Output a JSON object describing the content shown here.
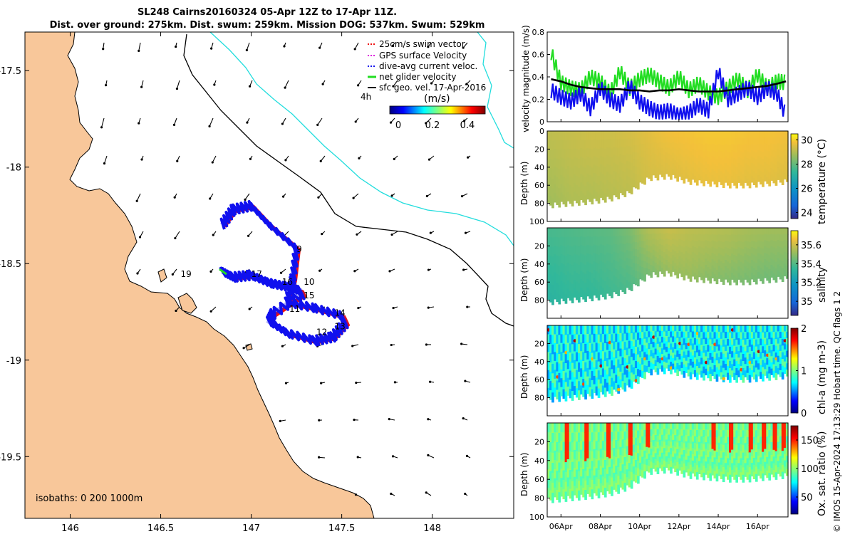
{
  "title": "SL248 Cairns20160324 05-Apr 12Z to 17-Apr 11Z.",
  "subtitle": "Dist. over ground: 275km. Dist. swum: 259km. Mission DOG: 537km. Swum: 529km",
  "credit": "© IMOS 15-Apr-2024 17:13:29 Hobart time. QC flags 1  2",
  "colors": {
    "land": "#f8c79a",
    "coast": "#000000",
    "isobath200": "#000000",
    "isobath1000": "#22dddd",
    "track": "#1010ee",
    "swim": "#ee1111",
    "net": "#22dd22"
  },
  "chart_data": [
    {
      "type": "line",
      "panel": "map",
      "title": "Glider track map",
      "xlabel": "",
      "ylabel": "",
      "xlim": [
        145.75,
        148.45
      ],
      "ylim": [
        -19.82,
        -17.3
      ],
      "x_ticks": [
        "146",
        "146.5",
        "147",
        "147.5",
        "148"
      ],
      "y_ticks": [
        "-17.5",
        "-18",
        "-18.5",
        "-19",
        "-19.5"
      ],
      "isobath_label": "isobaths: 0   200  1000m",
      "legend": [
        {
          "label": "25cm/s swim vector",
          "color": "#ee1111"
        },
        {
          "label": "GPS surface Velocity",
          "color": "#dd22dd"
        },
        {
          "label": "dive-avg current veloc.",
          "color": "#1010ee"
        },
        {
          "label": "net glider velocity",
          "color": "#22dd22"
        },
        {
          "label": "sfc geo. vel. 17-Apr-2016",
          "color": "#000000"
        }
      ],
      "legend_note": "4h",
      "colorbar_label": "(m/s)",
      "colorbar_ticks": [
        "0",
        "0.2",
        "0.4"
      ],
      "track_lon": [
        146.84,
        146.9,
        147.0,
        147.1,
        147.2,
        147.27,
        147.28,
        147.12,
        147.1,
        147.2,
        147.35,
        147.45,
        147.52,
        147.5,
        147.35,
        147.2,
        147.23,
        147.25,
        147.1,
        147.0,
        146.9,
        146.84
      ],
      "track_lat": [
        -18.54,
        -18.57,
        -18.56,
        -18.6,
        -18.62,
        -18.64,
        -18.66,
        -18.76,
        -18.8,
        -18.86,
        -18.9,
        -18.88,
        -18.81,
        -18.77,
        -18.73,
        -18.7,
        -18.58,
        -18.42,
        -18.3,
        -18.2,
        -18.22,
        -18.3
      ],
      "day_labels": [
        {
          "label": "9",
          "lon": 147.25,
          "lat": -18.44
        },
        {
          "label": "10",
          "lon": 147.29,
          "lat": -18.61
        },
        {
          "label": "11",
          "lon": 147.21,
          "lat": -18.75
        },
        {
          "label": "12",
          "lon": 147.36,
          "lat": -18.87
        },
        {
          "label": "13",
          "lon": 147.46,
          "lat": -18.84
        },
        {
          "label": "14",
          "lon": 147.46,
          "lat": -18.77
        },
        {
          "label": "15",
          "lon": 147.29,
          "lat": -18.68
        },
        {
          "label": "16",
          "lon": 147.17,
          "lat": -18.61
        },
        {
          "label": "17",
          "lon": 147.0,
          "lat": -18.57
        },
        {
          "label": "19",
          "lon": 146.61,
          "lat": -18.57
        }
      ]
    },
    {
      "type": "line",
      "panel": "velocity",
      "ylabel": "velocity magnitude (m/s)",
      "ylim": [
        0,
        0.8
      ],
      "y_ticks": [
        "0",
        "0.2",
        "0.4",
        "0.6",
        "0.8"
      ],
      "x_days": [
        5.5,
        6,
        6.5,
        7,
        7.5,
        8,
        8.5,
        9,
        9.5,
        10,
        10.5,
        11,
        11.5,
        12,
        12.5,
        13,
        13.5,
        14,
        14.5,
        15,
        15.5,
        16,
        16.5,
        17,
        17.45
      ],
      "series": [
        {
          "name": "net glider velocity",
          "color": "#22dd22",
          "values": [
            0.62,
            0.35,
            0.3,
            0.28,
            0.4,
            0.36,
            0.25,
            0.45,
            0.3,
            0.38,
            0.42,
            0.36,
            0.3,
            0.4,
            0.28,
            0.34,
            0.26,
            0.22,
            0.3,
            0.38,
            0.28,
            0.42,
            0.3,
            0.36,
            0.35
          ]
        },
        {
          "name": "dive-avg current veloc.",
          "color": "#1010ee",
          "values": [
            0.28,
            0.22,
            0.18,
            0.25,
            0.12,
            0.3,
            0.2,
            0.15,
            0.32,
            0.18,
            0.12,
            0.08,
            0.1,
            0.05,
            0.08,
            0.15,
            0.1,
            0.45,
            0.2,
            0.25,
            0.3,
            0.22,
            0.3,
            0.25,
            0.05
          ]
        },
        {
          "name": "sfc geo. vel.",
          "color": "#000000",
          "values": [
            0.38,
            0.36,
            0.33,
            0.31,
            0.3,
            0.29,
            0.29,
            0.29,
            0.28,
            0.28,
            0.27,
            0.28,
            0.28,
            0.29,
            0.28,
            0.27,
            0.27,
            0.27,
            0.28,
            0.29,
            0.3,
            0.31,
            0.32,
            0.34,
            0.36
          ]
        }
      ]
    },
    {
      "type": "heatmap",
      "panel": "temperature",
      "ylabel": "Depth (m)",
      "ylim": [
        100,
        0
      ],
      "y_ticks": [
        "0",
        "20",
        "40",
        "60",
        "80",
        "100"
      ],
      "colorbar_label": "temperature (°C)",
      "colorbar_ticks": [
        "24",
        "26",
        "28",
        "30"
      ],
      "colorbar_range": [
        23.5,
        30.5
      ],
      "x_days": [
        5.5,
        6.5,
        7.5,
        8.5,
        9.5,
        10.5,
        11.5,
        12.5,
        13.5,
        14.5,
        15.5,
        16.5,
        17.45
      ],
      "max_depth": [
        82,
        80,
        78,
        75,
        68,
        52,
        50,
        56,
        58,
        60,
        60,
        58,
        56
      ],
      "surface_values": [
        28.6,
        28.7,
        28.8,
        28.8,
        28.9,
        29.1,
        29.3,
        29.4,
        29.5,
        29.5,
        29.4,
        29.4,
        29.3
      ],
      "bottom_values": [
        28.2,
        28.4,
        28.4,
        28.5,
        28.6,
        28.9,
        29.0,
        29.1,
        29.2,
        29.2,
        29.1,
        29.1,
        29.0
      ]
    },
    {
      "type": "heatmap",
      "panel": "salinity",
      "ylabel": "Depth (m)",
      "ylim": [
        100,
        0
      ],
      "y_ticks": [
        "20",
        "40",
        "60",
        "80"
      ],
      "colorbar_label": "salinity",
      "colorbar_ticks": [
        "35",
        "35.2",
        "35.4",
        "35.6"
      ],
      "colorbar_range": [
        34.85,
        35.75
      ],
      "x_days": [
        5.5,
        6.5,
        7.5,
        8.5,
        9.5,
        10.5,
        11.5,
        12.5,
        13.5,
        14.5,
        15.5,
        16.5,
        17.45
      ],
      "max_depth": [
        82,
        80,
        78,
        75,
        68,
        52,
        50,
        56,
        58,
        60,
        60,
        58,
        56
      ],
      "surface_values": [
        35.33,
        35.34,
        35.35,
        35.36,
        35.4,
        35.48,
        35.52,
        35.5,
        35.49,
        35.48,
        35.46,
        35.45,
        35.45
      ],
      "bottom_values": [
        35.28,
        35.3,
        35.3,
        35.32,
        35.34,
        35.4,
        35.44,
        35.44,
        35.42,
        35.41,
        35.4,
        35.39,
        35.39
      ]
    },
    {
      "type": "scatter",
      "panel": "chlorophyll",
      "ylabel": "Depth (m)",
      "ylim": [
        100,
        0
      ],
      "y_ticks": [
        "20",
        "40",
        "60",
        "80"
      ],
      "colorbar_label": "chl-a (mg m-3)",
      "colorbar_ticks": [
        "0",
        "1",
        "2"
      ],
      "colorbar_range": [
        0,
        2
      ],
      "x_days": [
        5.5,
        6.5,
        7.5,
        8.5,
        9.5,
        10.5,
        11.5,
        12.5,
        13.5,
        14.5,
        15.5,
        16.5,
        17.45
      ],
      "max_depth": [
        82,
        80,
        78,
        75,
        68,
        52,
        50,
        56,
        58,
        60,
        60,
        58,
        56
      ],
      "typical_value": 0.75,
      "high_values": [
        1.9,
        1.6,
        1.4
      ]
    },
    {
      "type": "heatmap",
      "panel": "oxygen",
      "ylabel": "Depth (m)",
      "ylim": [
        100,
        0
      ],
      "y_ticks": [
        "20",
        "40",
        "60",
        "80",
        "100"
      ],
      "colorbar_label": "Ox. sat. ratio (%)",
      "colorbar_ticks": [
        "50",
        "100",
        "150"
      ],
      "colorbar_range": [
        20,
        175
      ],
      "x_labels": [
        "06Apr",
        "08Apr",
        "10Apr",
        "12Apr",
        "14Apr",
        "16Apr"
      ],
      "x_days": [
        5.5,
        6.5,
        7.5,
        8.5,
        9.5,
        10.5,
        11.5,
        12.5,
        13.5,
        14.5,
        15.5,
        16.5,
        17.45
      ],
      "max_depth": [
        82,
        80,
        78,
        75,
        68,
        52,
        50,
        56,
        58,
        60,
        60,
        58,
        56
      ],
      "typical_value": 95,
      "surface_high_days": [
        6.3,
        7.3,
        8.4,
        9.5,
        10.4,
        13.8,
        14.7,
        15.7,
        16.3,
        16.9,
        17.3
      ],
      "surface_high_value": 150
    }
  ]
}
